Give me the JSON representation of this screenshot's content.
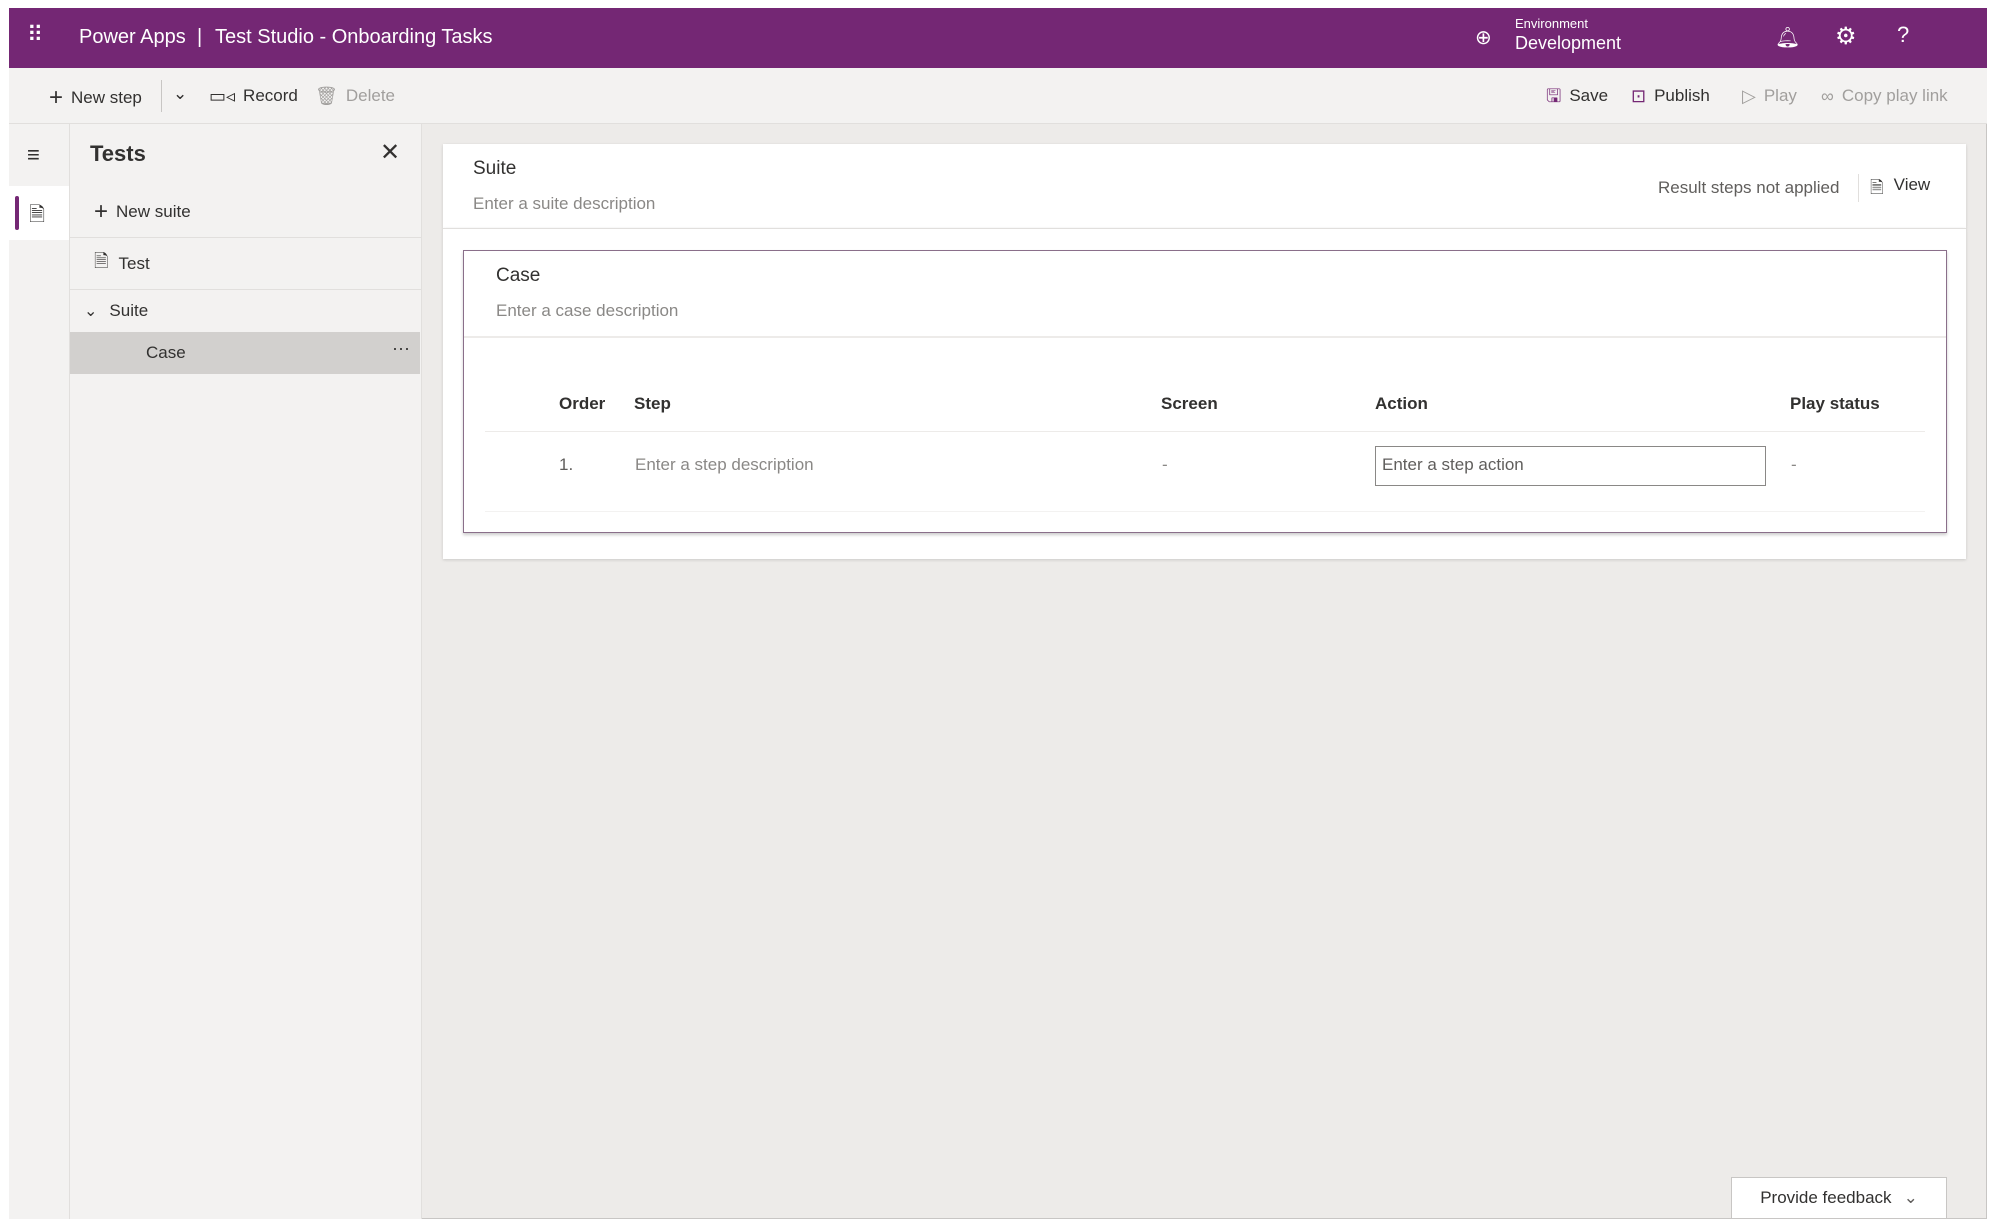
{
  "header": {
    "app": "Power Apps",
    "separator": "|",
    "title": "Test Studio - Onboarding Tasks",
    "environment_label": "Environment",
    "environment_value": "Development",
    "accent": "#742774"
  },
  "toolbar": {
    "new_step": "New step",
    "record": "Record",
    "delete": "Delete",
    "save": "Save",
    "publish": "Publish",
    "play": "Play",
    "copy_play_link": "Copy play link"
  },
  "panel": {
    "title": "Tests",
    "new_suite": "New suite",
    "test": "Test",
    "suite": "Suite",
    "case": "Case",
    "more": "···"
  },
  "suite": {
    "title": "Suite",
    "description_placeholder": "Enter a suite description",
    "result_status": "Result steps not applied",
    "view": "View"
  },
  "case": {
    "title": "Case",
    "description_placeholder": "Enter a case description",
    "columns": [
      "Order",
      "Step",
      "Screen",
      "Action",
      "Play status"
    ],
    "rows": [
      {
        "order": "1.",
        "step_placeholder": "Enter a step description",
        "screen": "-",
        "action_placeholder": "Enter a step action",
        "play_status": "-"
      }
    ]
  },
  "feedback": {
    "label": "Provide feedback"
  }
}
